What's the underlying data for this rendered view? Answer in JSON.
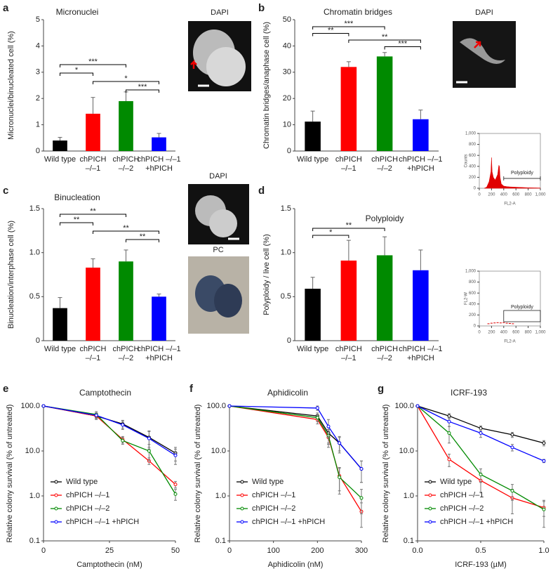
{
  "chart_data": [
    {
      "type": "bar",
      "panel": "a",
      "title": "Micronuclei",
      "ylabel": "Micronuclei/binucleated cell (%)",
      "categories": [
        [
          "Wild type"
        ],
        [
          "chPICH",
          "–/–1"
        ],
        [
          "chPICH",
          "–/–2"
        ],
        [
          "chPICH –/–1",
          "+hPICH"
        ]
      ],
      "values": [
        0.4,
        1.42,
        1.9,
        0.52
      ],
      "errors": [
        0.12,
        0.62,
        0.35,
        0.15
      ],
      "colors": [
        "#000000",
        "#ff0000",
        "#008a00",
        "#0000ff"
      ],
      "ylim": [
        0,
        5
      ],
      "yticks": [
        0,
        1,
        2,
        3,
        4,
        5
      ],
      "brackets": [
        {
          "from": 0,
          "to": 2,
          "label": "***"
        },
        {
          "from": 0,
          "to": 1,
          "label": "*"
        },
        {
          "from": 1,
          "to": 3,
          "label": "*"
        },
        {
          "from": 2,
          "to": 3,
          "label": "***"
        }
      ]
    },
    {
      "type": "bar",
      "panel": "b",
      "title": "Chromatin bridges",
      "ylabel": "Chromatin bridges/anaphase cell (%)",
      "categories": [
        [
          "Wild type"
        ],
        [
          "chPICH",
          "–/–1"
        ],
        [
          "chPICH",
          "–/–2"
        ],
        [
          "chPICH –/–1",
          "+hPICH"
        ]
      ],
      "values": [
        11.2,
        32,
        36,
        12.1
      ],
      "errors": [
        4,
        2,
        1.5,
        3.5
      ],
      "colors": [
        "#000000",
        "#ff0000",
        "#008a00",
        "#0000ff"
      ],
      "ylim": [
        0,
        50
      ],
      "yticks": [
        0,
        10,
        20,
        30,
        40,
        50
      ],
      "brackets": [
        {
          "from": 0,
          "to": 2,
          "label": "***"
        },
        {
          "from": 0,
          "to": 1,
          "label": "**"
        },
        {
          "from": 1,
          "to": 3,
          "label": "**"
        },
        {
          "from": 2,
          "to": 3,
          "label": "***"
        }
      ]
    },
    {
      "type": "bar",
      "panel": "c",
      "title": "Binucleation",
      "ylabel": "Binucleation/interphase cell (%)",
      "categories": [
        [
          "Wild type"
        ],
        [
          "chPICH",
          "–/–1"
        ],
        [
          "chPICH",
          "–/–2"
        ],
        [
          "chPICH –/–1",
          "+hPICH"
        ]
      ],
      "values": [
        0.37,
        0.83,
        0.9,
        0.5
      ],
      "errors": [
        0.12,
        0.1,
        0.13,
        0.03
      ],
      "colors": [
        "#000000",
        "#ff0000",
        "#008a00",
        "#0000ff"
      ],
      "ylim": [
        0,
        1.5
      ],
      "yticks": [
        0,
        0.5,
        {
          "value": 1,
          "label": "1.0"
        },
        1.5
      ],
      "brackets": [
        {
          "from": 0,
          "to": 2,
          "label": "**"
        },
        {
          "from": 0,
          "to": 1,
          "label": "**"
        },
        {
          "from": 1,
          "to": 3,
          "label": "**"
        },
        {
          "from": 2,
          "to": 3,
          "label": "**"
        }
      ]
    },
    {
      "type": "bar",
      "panel": "d",
      "title": "Polyploidy",
      "ylabel": "Polyploidy / live cell (%)",
      "categories": [
        [
          "Wild type"
        ],
        [
          "chPICH",
          "–/–1"
        ],
        [
          "chPICH",
          "–/–2"
        ],
        [
          "chPICH –/–1",
          "+hPICH"
        ]
      ],
      "values": [
        0.59,
        0.91,
        0.97,
        0.8
      ],
      "errors": [
        0.13,
        0.23,
        0.21,
        0.23
      ],
      "colors": [
        "#000000",
        "#ff0000",
        "#008a00",
        "#0000ff"
      ],
      "ylim": [
        0,
        1.5
      ],
      "yticks": [
        0,
        0.5,
        {
          "value": 1,
          "label": "1.0"
        },
        1.5
      ],
      "brackets": [
        {
          "from": 0,
          "to": 2,
          "label": "**"
        },
        {
          "from": 0,
          "to": 1,
          "label": "*"
        }
      ]
    },
    {
      "type": "area",
      "ylabel": "Counts",
      "xlabel": "FL2-A",
      "annotation": "Polyploidy",
      "gate_x": [
        400,
        1000
      ],
      "color": "#e00000",
      "x": [
        80,
        120,
        160,
        190,
        200,
        210,
        230,
        260,
        300,
        320,
        330,
        340,
        360,
        400,
        450,
        500,
        600,
        800,
        1000
      ],
      "values": [
        0,
        20,
        120,
        300,
        560,
        300,
        200,
        150,
        250,
        420,
        400,
        200,
        80,
        40,
        30,
        25,
        20,
        10,
        5
      ],
      "xlim": [
        0,
        1000
      ],
      "xticks": [
        0,
        200,
        400,
        600,
        800,
        {
          "value": 1000,
          "label": "1,000"
        }
      ],
      "ylim": [
        0,
        1000
      ],
      "yticks": [
        0,
        200,
        400,
        600,
        800,
        {
          "value": 1000,
          "label": "1,000"
        }
      ]
    },
    {
      "type": "scatter",
      "ylabel": "FL2-W",
      "xlabel": "FL2-A",
      "annotation": "Polyploidy",
      "gate_x": [
        400,
        1000
      ],
      "color": "#e00000",
      "x": [
        150,
        200,
        250,
        300,
        350,
        400,
        450,
        500,
        550
      ],
      "values": [
        40,
        50,
        55,
        60,
        55,
        60,
        50,
        45,
        40
      ],
      "xlim": [
        0,
        1000
      ],
      "xticks": [
        0,
        200,
        400,
        600,
        800,
        {
          "value": 1000,
          "label": "1,000"
        }
      ],
      "ylim": [
        0,
        1000
      ],
      "yticks": [
        0,
        200,
        400,
        600,
        800,
        {
          "value": 1000,
          "label": "1,000"
        }
      ]
    },
    {
      "type": "line",
      "panel": "e",
      "title": "Camptothecin",
      "xlabel": "Camptothecin (nM)",
      "ylabel": "Relative colony survival (% of untreated)",
      "log_y": true,
      "legend": "lower left",
      "x": [
        0,
        20,
        30,
        40,
        50
      ],
      "xlim": [
        0,
        50
      ],
      "xticks": [
        0,
        25,
        50
      ],
      "ylim": [
        0.1,
        100
      ],
      "yticks": [
        {
          "value": 0.1,
          "label": "0.1"
        },
        {
          "value": 1,
          "label": "1.0"
        },
        {
          "value": 10,
          "label": "10.0"
        },
        {
          "value": 100,
          "label": "100.0"
        }
      ],
      "series": [
        {
          "name": "Wild type",
          "color": "#000000",
          "values": [
            100,
            60,
            40,
            20,
            9
          ],
          "errors": [
            0,
            8,
            8,
            8,
            3
          ]
        },
        {
          "name": "chPICH –/–1",
          "color": "#ff0000",
          "values": [
            100,
            60,
            18,
            6,
            1.8
          ],
          "errors": [
            0,
            10,
            3,
            1,
            0.3
          ]
        },
        {
          "name": "chPICH –/–2",
          "color": "#008a00",
          "values": [
            100,
            65,
            17,
            10,
            1.1
          ],
          "errors": [
            0,
            10,
            3,
            4,
            0.3
          ]
        },
        {
          "name": "chPICH –/–1 +hPICH",
          "color": "#0000ff",
          "values": [
            100,
            62,
            38,
            19,
            8
          ],
          "errors": [
            0,
            8,
            8,
            8,
            3
          ]
        }
      ]
    },
    {
      "type": "line",
      "panel": "f",
      "title": "Aphidicolin",
      "xlabel": "Aphidicolin (nM)",
      "ylabel": "Relative colony survival (% of untreated)",
      "log_y": true,
      "legend": "lower left",
      "x": [
        0,
        200,
        225,
        250,
        300
      ],
      "xlim": [
        0,
        300
      ],
      "xticks": [
        0,
        100,
        200,
        300
      ],
      "ylim": [
        0.1,
        100
      ],
      "yticks": [
        {
          "value": 0.1,
          "label": "0.1"
        },
        {
          "value": 1,
          "label": "1.0"
        },
        {
          "value": 10,
          "label": "10.0"
        },
        {
          "value": 100,
          "label": "100.0"
        }
      ],
      "series": [
        {
          "name": "Wild type",
          "color": "#000000",
          "values": [
            100,
            60,
            25,
            15,
            4
          ],
          "errors": [
            0,
            10,
            10,
            5,
            2
          ]
        },
        {
          "name": "chPICH –/–1",
          "color": "#ff0000",
          "values": [
            100,
            50,
            20,
            2.8,
            0.45
          ],
          "errors": [
            0,
            10,
            8,
            1.5,
            0.25
          ]
        },
        {
          "name": "chPICH –/–2",
          "color": "#008a00",
          "values": [
            100,
            55,
            22,
            2.6,
            0.9
          ],
          "errors": [
            0,
            10,
            8,
            1.5,
            0.5
          ]
        },
        {
          "name": "chPICH –/–1 +hPICH",
          "color": "#0000ff",
          "values": [
            100,
            90,
            35,
            15,
            4
          ],
          "errors": [
            0,
            10,
            15,
            6,
            2
          ]
        }
      ]
    },
    {
      "type": "line",
      "panel": "g",
      "title": "ICRF-193",
      "xlabel": "ICRF-193 (µM)",
      "ylabel": "Relative colony survival (% of untreated)",
      "log_y": true,
      "legend": "lower left",
      "x": [
        0,
        0.25,
        0.5,
        0.75,
        1
      ],
      "xlim": [
        0,
        1
      ],
      "xticks": [
        {
          "value": 0,
          "label": "0.0"
        },
        0.5,
        {
          "value": 1,
          "label": "1.0"
        }
      ],
      "ylim": [
        0.1,
        100
      ],
      "yticks": [
        {
          "value": 0.1,
          "label": "0.1"
        },
        {
          "value": 1,
          "label": "1.0"
        },
        {
          "value": 10,
          "label": "10.0"
        },
        {
          "value": 100,
          "label": "100.0"
        }
      ],
      "series": [
        {
          "name": "Wild type",
          "color": "#000000",
          "values": [
            100,
            60,
            32,
            23,
            15
          ],
          "errors": [
            0,
            8,
            4,
            3,
            2
          ]
        },
        {
          "name": "chPICH –/–1",
          "color": "#ff0000",
          "values": [
            100,
            6.5,
            2.2,
            0.9,
            0.55
          ],
          "errors": [
            0,
            2,
            1,
            0.5,
            0.2
          ]
        },
        {
          "name": "chPICH –/–2",
          "color": "#008a00",
          "values": [
            100,
            25,
            3,
            1.3,
            0.5
          ],
          "errors": [
            0,
            10,
            1,
            0.5,
            0.3
          ]
        },
        {
          "name": "chPICH –/–1 +hPICH",
          "color": "#0000ff",
          "values": [
            100,
            45,
            25,
            12,
            6
          ],
          "errors": [
            0,
            10,
            5,
            2,
            0.5
          ]
        }
      ]
    }
  ],
  "images": [
    {
      "label": "DAPI"
    },
    {
      "label": "DAPI"
    },
    {
      "label": "DAPI"
    },
    {
      "label": "PC"
    }
  ]
}
